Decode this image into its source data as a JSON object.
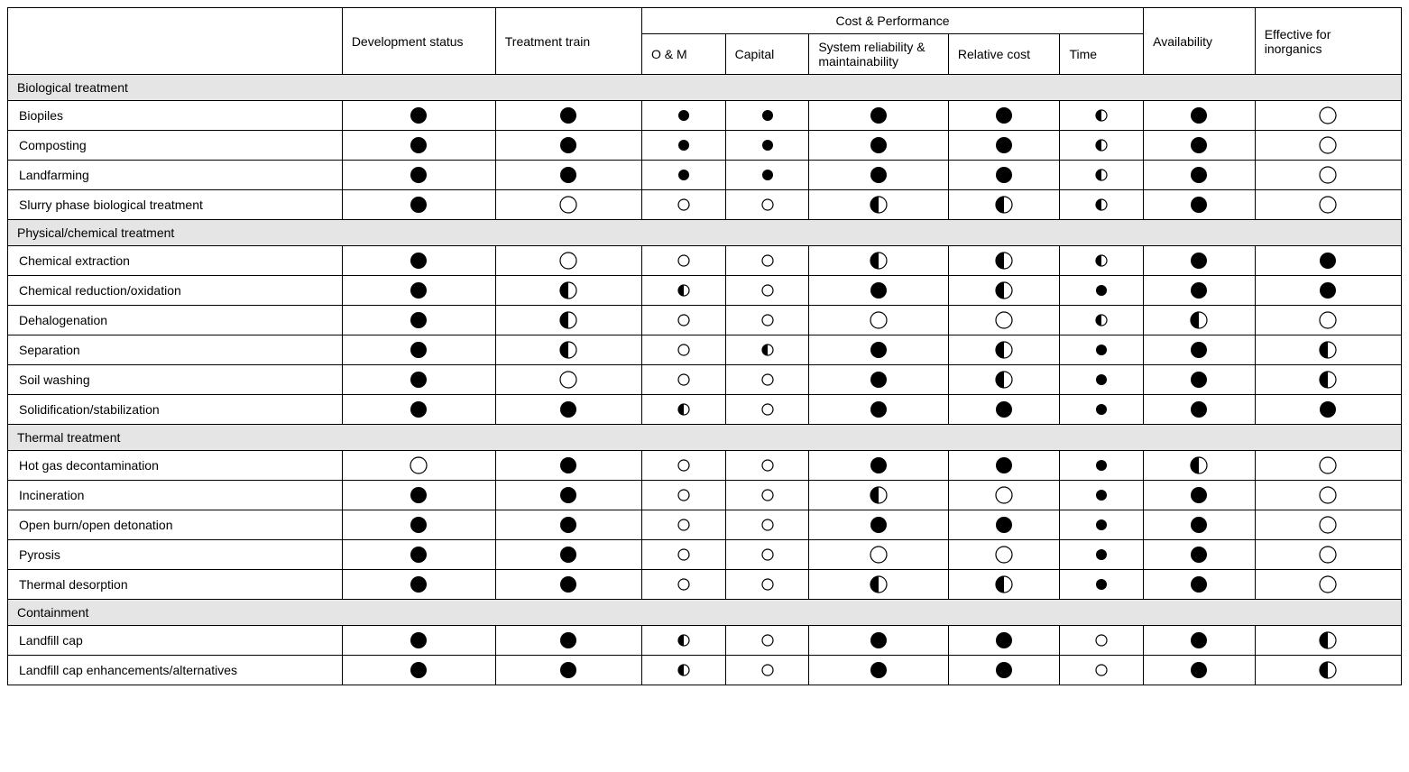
{
  "table": {
    "type": "table",
    "colors": {
      "background": "#ffffff",
      "section_bg": "#e5e5e5",
      "border": "#000000",
      "text": "#000000",
      "symbol_fill": "#000000"
    },
    "typography": {
      "font_family": "Arial, Malgun Gothic, sans-serif",
      "header_fontsize": 14,
      "body_fontsize": 14,
      "font_weight": "normal"
    },
    "symbol_sizes": {
      "large_radius": 9,
      "small_radius": 6,
      "stroke_width": 1.2
    },
    "headers": {
      "blank": "",
      "dev_status": "Development status",
      "treatment_train": "Treatment train",
      "cost_perf_group": "Cost & Performance",
      "om": "O & M",
      "capital": "Capital",
      "reliability": "System reliability & maintainability",
      "relative_cost": "Relative cost",
      "time": "Time",
      "availability": "Availability",
      "effective": "Effective for inorganics"
    },
    "column_widths_pct": [
      24,
      11,
      10.5,
      6,
      6,
      10,
      8,
      6,
      8,
      10.5
    ],
    "sections": [
      {
        "title": "Biological treatment",
        "rows": [
          {
            "label": "Biopiles",
            "cells": [
              "full",
              "full",
              "full",
              "full",
              "full",
              "full",
              "half",
              "full",
              "empty"
            ]
          },
          {
            "label": "Composting",
            "cells": [
              "full",
              "full",
              "full",
              "full",
              "full",
              "full",
              "half",
              "full",
              "empty"
            ]
          },
          {
            "label": "Landfarming",
            "cells": [
              "full",
              "full",
              "full",
              "full",
              "full",
              "full",
              "half",
              "full",
              "empty"
            ]
          },
          {
            "label": "Slurry phase biological treatment",
            "cells": [
              "full",
              "empty",
              "empty",
              "empty",
              "half",
              "half",
              "half",
              "full",
              "empty"
            ]
          }
        ]
      },
      {
        "title": "Physical/chemical treatment",
        "rows": [
          {
            "label": "Chemical extraction",
            "cells": [
              "full",
              "empty",
              "empty",
              "empty",
              "half",
              "half",
              "half",
              "full",
              "full"
            ]
          },
          {
            "label": "Chemical reduction/oxidation",
            "cells": [
              "full",
              "half",
              "half",
              "empty",
              "full",
              "half",
              "full",
              "full",
              "full"
            ]
          },
          {
            "label": "Dehalogenation",
            "cells": [
              "full",
              "half",
              "empty",
              "empty",
              "empty",
              "empty",
              "half",
              "half",
              "empty"
            ]
          },
          {
            "label": "Separation",
            "cells": [
              "full",
              "half",
              "empty",
              "half",
              "full",
              "half",
              "full",
              "full",
              "half"
            ]
          },
          {
            "label": "Soil washing",
            "cells": [
              "full",
              "empty",
              "empty",
              "empty",
              "full",
              "half",
              "full",
              "full",
              "half"
            ]
          },
          {
            "label": "Solidification/stabilization",
            "cells": [
              "full",
              "full",
              "half",
              "empty",
              "full",
              "full",
              "full",
              "full",
              "full"
            ]
          }
        ]
      },
      {
        "title": "Thermal treatment",
        "rows": [
          {
            "label": "Hot gas decontamination",
            "cells": [
              "empty",
              "full",
              "empty",
              "empty",
              "full",
              "full",
              "full",
              "half",
              "empty"
            ]
          },
          {
            "label": "Incineration",
            "cells": [
              "full",
              "full",
              "empty",
              "empty",
              "half",
              "empty",
              "full",
              "full",
              "empty"
            ]
          },
          {
            "label": "Open burn/open detonation",
            "cells": [
              "full",
              "full",
              "empty",
              "empty",
              "full",
              "full",
              "full",
              "full",
              "empty"
            ]
          },
          {
            "label": "Pyrosis",
            "cells": [
              "full",
              "full",
              "empty",
              "empty",
              "empty",
              "empty",
              "full",
              "full",
              "empty"
            ]
          },
          {
            "label": "Thermal desorption",
            "cells": [
              "full",
              "full",
              "empty",
              "empty",
              "half",
              "half",
              "full",
              "full",
              "empty"
            ]
          }
        ]
      },
      {
        "title": "Containment",
        "rows": [
          {
            "label": "Landfill cap",
            "cells": [
              "full",
              "full",
              "half",
              "empty",
              "full",
              "full",
              "empty",
              "full",
              "half"
            ]
          },
          {
            "label": "Landfill cap enhancements/alternatives",
            "cells": [
              "full",
              "full",
              "half",
              "empty",
              "full",
              "full",
              "empty",
              "full",
              "half"
            ]
          }
        ]
      }
    ]
  }
}
